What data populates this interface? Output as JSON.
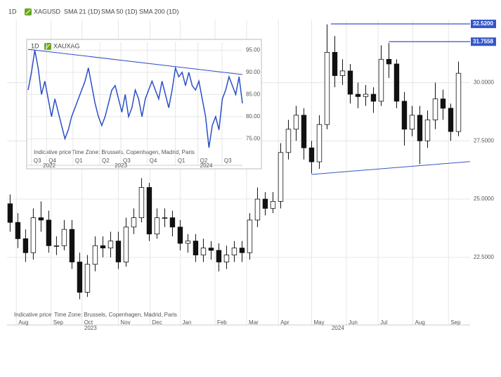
{
  "chart_data": [
    {
      "type": "candlestick",
      "title": "XAGUSD",
      "timeframe": "1D",
      "indicators": [
        "SMA 21 (1D)",
        "SMA 50 (1D)",
        "SMA 200 (1D)"
      ],
      "open": [
        24.8,
        24.0,
        23.3,
        22.7,
        24.2,
        24.1,
        23.0,
        23.0,
        23.7,
        22.3,
        21.0,
        22.2,
        23.0,
        22.9,
        23.2,
        22.3,
        23.8,
        24.2,
        25.5,
        23.5,
        24.2,
        24.2,
        23.8,
        23.1,
        23.2,
        22.6,
        22.9,
        22.8,
        22.3,
        22.6,
        22.9,
        22.7,
        24.1,
        25.0,
        24.6,
        24.9,
        27.0,
        28.0,
        28.6,
        27.2,
        26.6,
        28.2,
        31.3,
        30.3,
        30.5,
        29.5,
        29.4,
        29.5,
        29.2,
        31.0,
        30.8,
        29.2,
        28.0,
        28.6,
        27.5,
        28.4,
        29.3,
        28.9,
        27.9
      ],
      "high": [
        25.2,
        24.4,
        23.7,
        24.6,
        24.9,
        24.5,
        23.4,
        24.1,
        24.1,
        22.7,
        22.6,
        23.4,
        23.4,
        23.6,
        23.6,
        24.2,
        24.6,
        25.9,
        25.7,
        24.6,
        24.6,
        24.5,
        24.1,
        23.5,
        23.5,
        23.3,
        23.2,
        23.1,
        23.0,
        23.2,
        23.2,
        24.4,
        25.5,
        25.3,
        25.3,
        27.4,
        28.4,
        29.0,
        28.9,
        27.5,
        28.6,
        32.5,
        32.0,
        31.0,
        30.8,
        30.0,
        29.9,
        29.8,
        31.6,
        31.7,
        31.0,
        29.6,
        29.0,
        29.0,
        28.8,
        30.0,
        29.7,
        29.1,
        30.9
      ],
      "low": [
        23.6,
        22.9,
        22.3,
        22.4,
        23.6,
        22.7,
        22.6,
        22.8,
        22.0,
        20.7,
        20.8,
        21.9,
        22.5,
        22.5,
        22.0,
        22.1,
        23.5,
        24.0,
        23.2,
        23.3,
        23.8,
        23.4,
        22.8,
        22.7,
        22.3,
        22.3,
        22.4,
        21.9,
        22.0,
        22.3,
        22.3,
        22.4,
        23.8,
        24.3,
        24.4,
        24.6,
        26.7,
        27.5,
        26.7,
        26.1,
        26.3,
        28.0,
        29.8,
        29.9,
        29.1,
        28.9,
        29.0,
        28.7,
        29.0,
        30.2,
        28.9,
        27.3,
        27.7,
        26.5,
        27.2,
        28.0,
        28.4,
        27.5,
        27.7
      ],
      "close": [
        24.0,
        23.3,
        22.7,
        24.2,
        24.1,
        23.0,
        23.0,
        23.7,
        22.3,
        21.0,
        22.2,
        23.0,
        22.9,
        23.2,
        22.3,
        23.8,
        24.2,
        25.5,
        23.5,
        24.2,
        24.2,
        23.8,
        23.1,
        23.2,
        22.6,
        22.9,
        22.8,
        22.3,
        22.6,
        22.9,
        22.7,
        24.1,
        25.0,
        24.6,
        24.9,
        27.0,
        28.0,
        28.6,
        27.2,
        26.6,
        28.2,
        31.3,
        30.3,
        30.5,
        29.5,
        29.4,
        29.5,
        29.2,
        31.0,
        30.8,
        29.2,
        28.0,
        28.6,
        27.5,
        28.4,
        29.3,
        28.9,
        27.9,
        30.4
      ],
      "xlim": [
        -0.4,
        59.5
      ],
      "xticks": [
        {
          "value": 0.8,
          "label": "Aug"
        },
        {
          "value": 5.3,
          "label": "Sep"
        },
        {
          "value": 9.3,
          "label": "Oct"
        },
        {
          "value": 14,
          "label": "Nov"
        },
        {
          "value": 18.1,
          "label": "Dec"
        },
        {
          "value": 22,
          "label": "Jan"
        },
        {
          "value": 26.5,
          "label": "Feb"
        },
        {
          "value": 30.6,
          "label": "Mar"
        },
        {
          "value": 34.7,
          "label": "Apr"
        },
        {
          "value": 39,
          "label": "May"
        },
        {
          "value": 43.5,
          "label": "Jun"
        },
        {
          "value": 47.6,
          "label": "Jul"
        },
        {
          "value": 52.1,
          "label": "Aug"
        },
        {
          "value": 56.7,
          "label": "Sep"
        }
      ],
      "year_ticks": [
        {
          "value": 10.4,
          "label": "2023"
        },
        {
          "value": 42.4,
          "label": "2024"
        }
      ],
      "ylim": [
        19.9,
        32.7
      ],
      "yticks": [
        {
          "value": 22.5,
          "label": "22.5000"
        },
        {
          "value": 25,
          "label": "25.0000"
        },
        {
          "value": 27.5,
          "label": "27.5000"
        },
        {
          "value": 30,
          "label": "30.0000"
        }
      ],
      "grid": true,
      "levels": [
        {
          "value": 32.52,
          "label": "32.5200",
          "from": 41.5
        },
        {
          "value": 31.7558,
          "label": "31.7558",
          "from": 49
        }
      ],
      "trendline": {
        "x": [
          39,
          59.5
        ],
        "y": [
          26.06,
          26.61
        ]
      },
      "line_color": "#3556c8",
      "up_color": "#ffffff",
      "down_color": "#111111",
      "footnote": "Indicative price",
      "timezone": "Time Zone: Brussels, Copenhagen, Madrid, Paris"
    },
    {
      "type": "line",
      "title": "XAUXAG",
      "timeframe": "1D",
      "values": [
        86,
        90,
        95,
        91,
        85,
        88,
        84,
        80,
        84,
        81,
        78,
        75,
        77,
        80,
        82,
        84,
        86,
        88,
        91,
        87,
        83,
        80,
        78,
        80,
        83,
        86,
        87,
        84,
        81,
        85,
        80,
        82,
        86,
        84,
        80,
        84,
        86,
        88,
        86,
        84,
        88,
        85,
        82,
        86,
        91,
        89,
        90,
        87,
        90,
        87,
        86,
        88,
        84,
        80,
        73,
        78,
        80,
        77,
        84,
        86,
        89,
        87,
        85,
        89,
        83
      ],
      "color": "#2b4fc8",
      "xlim": [
        0,
        64
      ],
      "xticks": [
        {
          "value": 1,
          "label": "Q3"
        },
        {
          "value": 5.5,
          "label": "Q4"
        },
        {
          "value": 13.4,
          "label": "Q1"
        },
        {
          "value": 21.4,
          "label": "Q2"
        },
        {
          "value": 27.7,
          "label": "Q3"
        },
        {
          "value": 35.6,
          "label": "Q4"
        },
        {
          "value": 44,
          "label": "Q1"
        },
        {
          "value": 50.7,
          "label": "Q2"
        },
        {
          "value": 57.9,
          "label": "Q3"
        }
      ],
      "year_ticks": [
        {
          "value": 6.3,
          "label": "2022"
        },
        {
          "value": 27.7,
          "label": "2023"
        },
        {
          "value": 53.2,
          "label": "2024"
        }
      ],
      "ylim": [
        70.6,
        96.8
      ],
      "yticks": [
        {
          "value": 75,
          "label": "75.00"
        },
        {
          "value": 80,
          "label": "80.00"
        },
        {
          "value": 85,
          "label": "85.00"
        },
        {
          "value": 90,
          "label": "90.00"
        },
        {
          "value": 95,
          "label": "95.00"
        }
      ],
      "grid": true,
      "trendline": {
        "x": [
          0,
          64
        ],
        "y": [
          95.2,
          89.5
        ]
      },
      "footnote": "Indicative price",
      "timezone": "Time Zone: Brussels, Copenhagen, Madrid, Paris"
    }
  ]
}
